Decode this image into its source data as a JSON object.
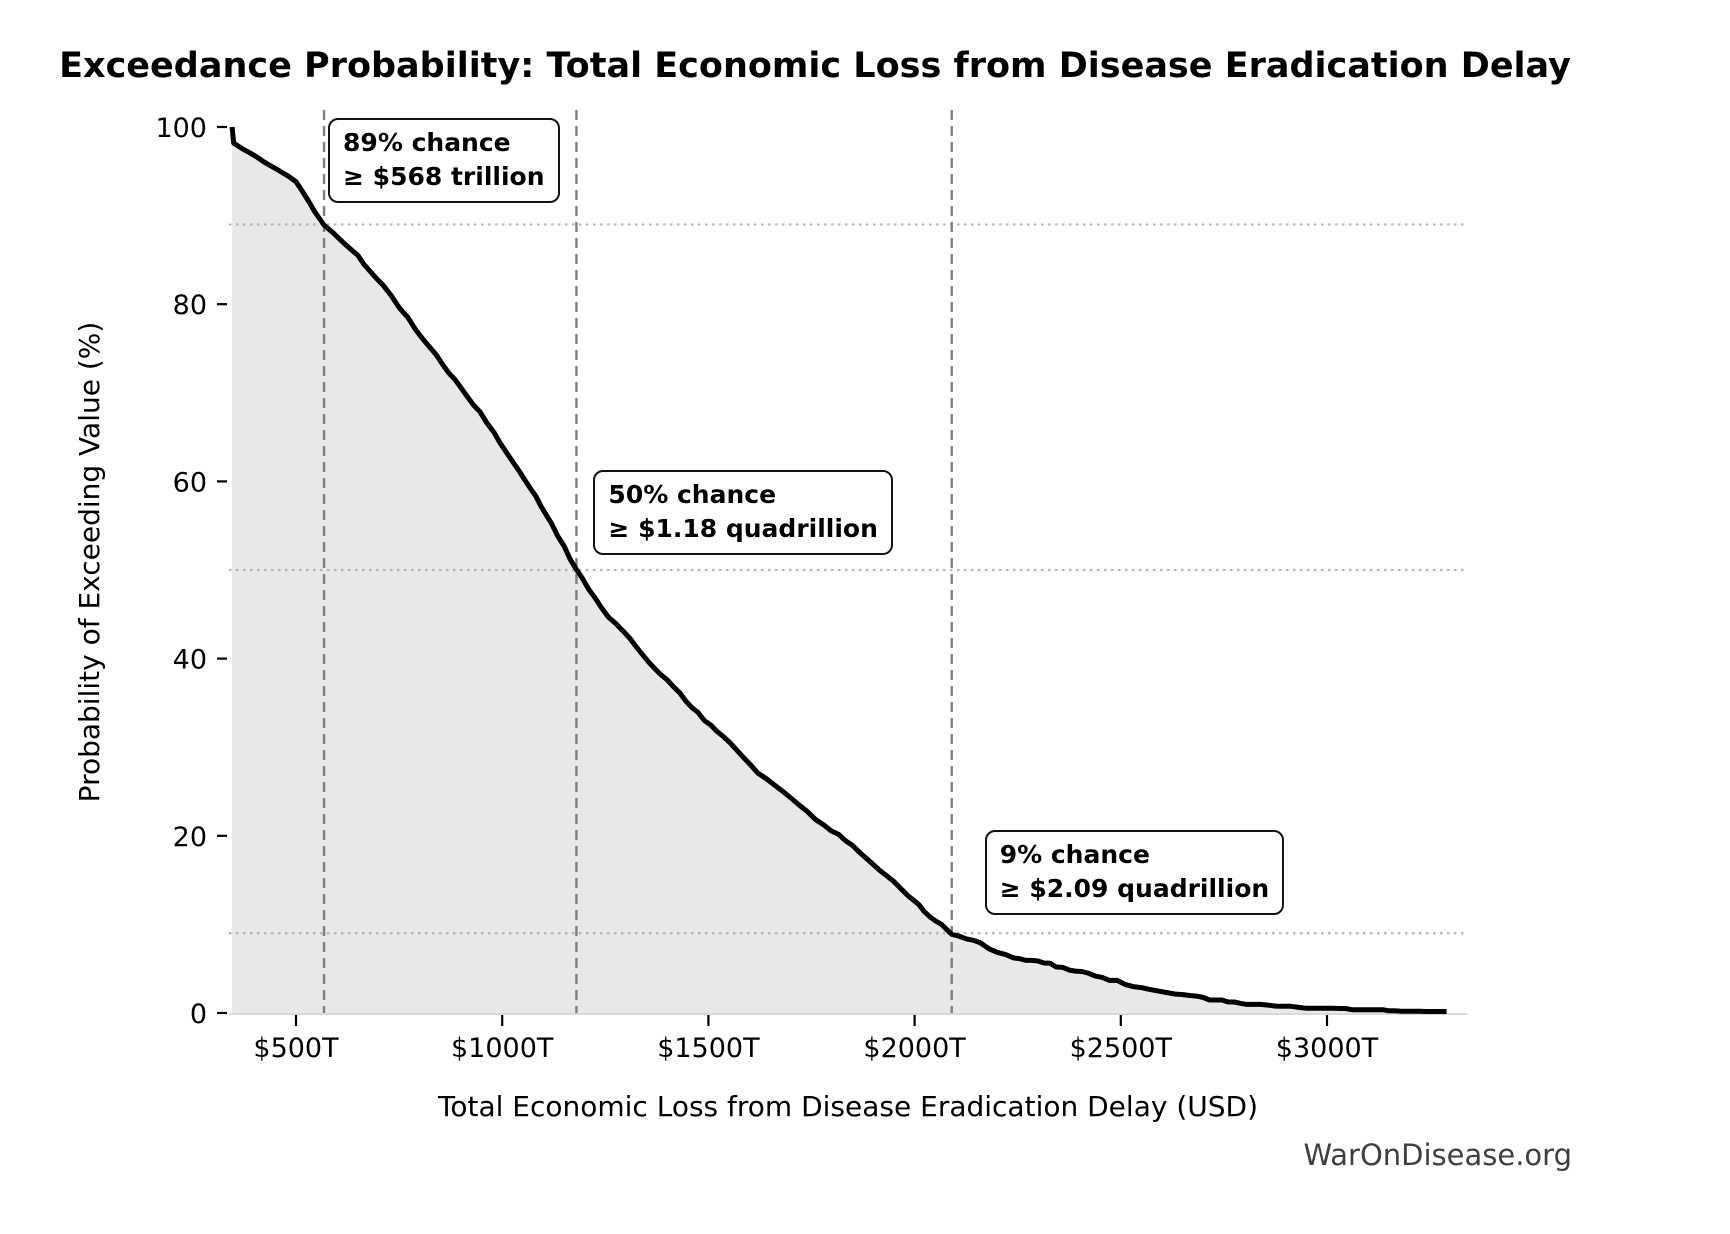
{
  "watermark": "WarOnDisease.org",
  "chart_data": {
    "type": "area",
    "title": "Exceedance Probability: Total Economic Loss from Disease Eradication Delay",
    "xlabel": "Total Economic Loss from Disease Eradication Delay (USD)",
    "ylabel": "Probability of Exceeding Value (%)",
    "xlim_trillions": [
      330,
      3340
    ],
    "ylim_percent": [
      0,
      102
    ],
    "grid": "guide lines only (dotted horizontal at annotation probabilities, dashed vertical at annotation values)",
    "legend": "none",
    "x_ticks": [
      {
        "value": 500,
        "label": "$500T"
      },
      {
        "value": 1000,
        "label": "$1000T"
      },
      {
        "value": 1500,
        "label": "$1500T"
      },
      {
        "value": 2000,
        "label": "$2000T"
      },
      {
        "value": 2500,
        "label": "$2500T"
      },
      {
        "value": 3000,
        "label": "$3000T"
      }
    ],
    "y_ticks": [
      {
        "value": 100,
        "label": "100"
      },
      {
        "value": 80,
        "label": "80"
      },
      {
        "value": 60,
        "label": "60"
      },
      {
        "value": 40,
        "label": "40"
      },
      {
        "value": 20,
        "label": "20"
      },
      {
        "value": 0,
        "label": "0"
      }
    ],
    "annotations": [
      {
        "probability_pct": 89,
        "value_trillions": 568,
        "line1": "89% chance",
        "line2": "≥ $568 trillion",
        "box_offset": [
          4,
          -106
        ]
      },
      {
        "probability_pct": 50,
        "value_trillions": 1180,
        "line1": "50% chance",
        "line2": "≥ $1.18 quadrillion",
        "box_offset": [
          17,
          -100
        ]
      },
      {
        "probability_pct": 9,
        "value_trillions": 2090,
        "line1": "9% chance",
        "line2": "≥ $2.09 quadrillion",
        "box_offset": [
          33,
          -103
        ]
      }
    ],
    "series": [
      {
        "name": "exceedance_probability_curve",
        "x_unit": "trillions USD",
        "y_unit": "percent",
        "points": [
          [
            345,
            100
          ],
          [
            349,
            98.2
          ],
          [
            368,
            97.6
          ],
          [
            388,
            97.2
          ],
          [
            420,
            96.2
          ],
          [
            455,
            95.2
          ],
          [
            480,
            94.4
          ],
          [
            500,
            93.7
          ],
          [
            515,
            92.7
          ],
          [
            530,
            91.6
          ],
          [
            545,
            90.6
          ],
          [
            568,
            89.0
          ],
          [
            590,
            88.1
          ],
          [
            615,
            86.9
          ],
          [
            650,
            85.4
          ],
          [
            680,
            83.8
          ],
          [
            710,
            82.2
          ],
          [
            752,
            79.6
          ],
          [
            790,
            77.2
          ],
          [
            825,
            75.2
          ],
          [
            855,
            73.2
          ],
          [
            885,
            71.4
          ],
          [
            915,
            69.6
          ],
          [
            946,
            67.8
          ],
          [
            980,
            65.4
          ],
          [
            1010,
            63.3
          ],
          [
            1040,
            61.3
          ],
          [
            1067,
            59.4
          ],
          [
            1095,
            57.2
          ],
          [
            1120,
            55.2
          ],
          [
            1150,
            52.6
          ],
          [
            1180,
            50.0
          ],
          [
            1210,
            47.8
          ],
          [
            1240,
            45.7
          ],
          [
            1275,
            43.9
          ],
          [
            1310,
            42.3
          ],
          [
            1340,
            40.5
          ],
          [
            1370,
            38.9
          ],
          [
            1400,
            37.5
          ],
          [
            1431,
            36.0
          ],
          [
            1460,
            34.6
          ],
          [
            1490,
            33.1
          ],
          [
            1520,
            31.8
          ],
          [
            1552,
            30.4
          ],
          [
            1585,
            28.8
          ],
          [
            1620,
            27.2
          ],
          [
            1660,
            25.7
          ],
          [
            1700,
            24.3
          ],
          [
            1740,
            22.6
          ],
          [
            1780,
            21.2
          ],
          [
            1815,
            20.1
          ],
          [
            1850,
            18.9
          ],
          [
            1885,
            17.4
          ],
          [
            1915,
            16.1
          ],
          [
            1950,
            14.7
          ],
          [
            1985,
            13.2
          ],
          [
            2010,
            12.2
          ],
          [
            2038,
            10.9
          ],
          [
            2065,
            9.9
          ],
          [
            2090,
            9.0
          ],
          [
            2125,
            8.4
          ],
          [
            2160,
            7.8
          ],
          [
            2200,
            6.9
          ],
          [
            2240,
            6.3
          ],
          [
            2285,
            5.9
          ],
          [
            2328,
            5.5
          ],
          [
            2375,
            4.9
          ],
          [
            2420,
            4.4
          ],
          [
            2455,
            4.0
          ],
          [
            2491,
            3.6
          ],
          [
            2530,
            3.1
          ],
          [
            2570,
            2.7
          ],
          [
            2610,
            2.3
          ],
          [
            2651,
            2.0
          ],
          [
            2700,
            1.7
          ],
          [
            2760,
            1.3
          ],
          [
            2820,
            1.0
          ],
          [
            2894,
            0.8
          ],
          [
            2950,
            0.65
          ],
          [
            3000,
            0.55
          ],
          [
            3060,
            0.45
          ],
          [
            3120,
            0.38
          ],
          [
            3180,
            0.3
          ],
          [
            3240,
            0.25
          ],
          [
            3290,
            0.2
          ]
        ]
      }
    ],
    "colors": {
      "curve": "#000000",
      "fill": "#e8e8e8",
      "dashed_guide": "#7f7f7f",
      "dotted_guide": "#b3b3b3",
      "baseline": "#d8d8d8",
      "tick": "#000000",
      "watermark": "#3f3f3f",
      "annotation_border": "#141414",
      "background": "#ffffff"
    }
  }
}
